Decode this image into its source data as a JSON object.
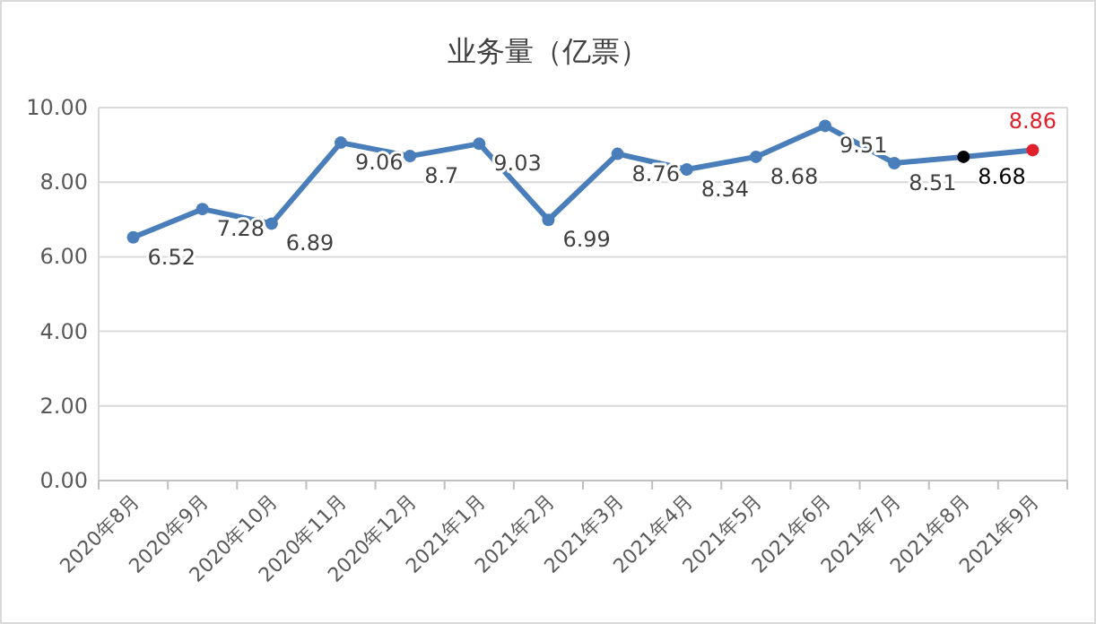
{
  "chart_data": {
    "type": "line",
    "title": "业务量（亿票）",
    "categories": [
      "2020年8月",
      "2020年9月",
      "2020年10月",
      "2020年11月",
      "2020年12月",
      "2021年1月",
      "2021年2月",
      "2021年3月",
      "2021年4月",
      "2021年5月",
      "2021年6月",
      "2021年7月",
      "2021年8月",
      "2021年9月"
    ],
    "series": [
      {
        "color": "#4a7ebb",
        "values": [
          6.52,
          7.28,
          6.89,
          9.06,
          8.7,
          9.03,
          6.99,
          8.76,
          8.34,
          8.68,
          9.51,
          8.51,
          8.68,
          8.86
        ],
        "colors": [
          "#4a7ebb",
          "#4a7ebb",
          "#4a7ebb",
          "#4a7ebb",
          "#4a7ebb",
          "#4a7ebb",
          "#4a7ebb",
          "#4a7ebb",
          "#4a7ebb",
          "#4a7ebb",
          "#4a7ebb",
          "#4a7ebb",
          "#000000",
          "#e0202a"
        ]
      }
    ],
    "ylim": [
      0,
      10
    ],
    "yticks": [
      {
        "value": 0,
        "label": "0.00"
      },
      {
        "value": 2,
        "label": "2.00"
      },
      {
        "value": 4,
        "label": "4.00"
      },
      {
        "value": 6,
        "label": "6.00"
      },
      {
        "value": 8,
        "label": "8.00"
      },
      {
        "value": 10,
        "label": "10.00"
      }
    ],
    "grid": "y",
    "marker": "circle",
    "line_style": "solid",
    "data_labels": true
  }
}
